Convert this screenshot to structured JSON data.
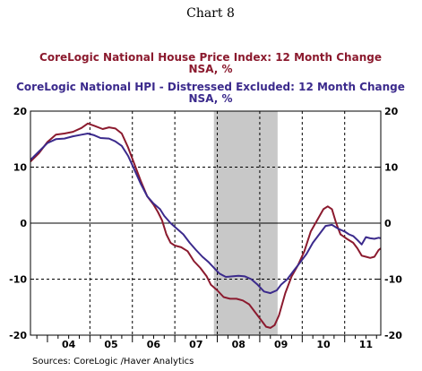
{
  "chart_data": {
    "type": "line",
    "title": "Chart 8",
    "legend": [
      {
        "line1": "CoreLogic National House Price Index: 12 Month Change",
        "line2": "NSA, %"
      },
      {
        "line1": "CoreLogic National HPI - Distressed Excluded: 12 Month Change",
        "line2": "NSA, %"
      }
    ],
    "source": "Sources:  CoreLogic /Haver Analytics",
    "ylim": [
      -20,
      20
    ],
    "yticks": [
      {
        "value": 20,
        "label": "20"
      },
      {
        "value": 10,
        "label": "10"
      },
      {
        "value": 0,
        "label": "0"
      },
      {
        "value": -10,
        "label": "-10"
      },
      {
        "value": -20,
        "label": "-20"
      }
    ],
    "xlim": [
      2003.6,
      2011.85
    ],
    "years": [
      {
        "label": "04",
        "value": 2004
      },
      {
        "label": "05",
        "value": 2005
      },
      {
        "label": "06",
        "value": 2006
      },
      {
        "label": "07",
        "value": 2007
      },
      {
        "label": "08",
        "value": 2008
      },
      {
        "label": "09",
        "value": 2009
      },
      {
        "label": "10",
        "value": 2010
      },
      {
        "label": "11",
        "value": 2011
      }
    ],
    "year_gridlines": [
      2005,
      2006,
      2007,
      2008,
      2009,
      2010,
      2011
    ],
    "recession": [
      2007.92,
      2009.42
    ],
    "colors": {
      "series1": "#8B1A2E",
      "series2": "#3B2A8C",
      "recession": "#C8C8C8"
    },
    "series": [
      {
        "name": "CoreLogic National House Price Index: 12 Month Change",
        "points": [
          [
            2003.6,
            11
          ],
          [
            2003.8,
            12.5
          ],
          [
            2004.0,
            14.5
          ],
          [
            2004.2,
            15.8
          ],
          [
            2004.4,
            16
          ],
          [
            2004.6,
            16.3
          ],
          [
            2004.8,
            17
          ],
          [
            2004.95,
            17.8
          ],
          [
            2005.1,
            17.4
          ],
          [
            2005.3,
            16.8
          ],
          [
            2005.45,
            17.1
          ],
          [
            2005.6,
            16.9
          ],
          [
            2005.75,
            16
          ],
          [
            2005.9,
            13.5
          ],
          [
            2006.05,
            10.5
          ],
          [
            2006.2,
            7.5
          ],
          [
            2006.35,
            4.8
          ],
          [
            2006.5,
            3.3
          ],
          [
            2006.6,
            2
          ],
          [
            2006.7,
            0.5
          ],
          [
            2006.8,
            -2
          ],
          [
            2006.9,
            -3.5
          ],
          [
            2007.0,
            -4
          ],
          [
            2007.15,
            -4.3
          ],
          [
            2007.3,
            -5
          ],
          [
            2007.45,
            -6.8
          ],
          [
            2007.6,
            -8
          ],
          [
            2007.75,
            -9.5
          ],
          [
            2007.85,
            -11
          ],
          [
            2008.0,
            -12
          ],
          [
            2008.15,
            -13.2
          ],
          [
            2008.3,
            -13.5
          ],
          [
            2008.45,
            -13.5
          ],
          [
            2008.6,
            -13.8
          ],
          [
            2008.75,
            -14.5
          ],
          [
            2008.9,
            -16
          ],
          [
            2009.05,
            -17.5
          ],
          [
            2009.15,
            -18.5
          ],
          [
            2009.25,
            -18.7
          ],
          [
            2009.35,
            -18.2
          ],
          [
            2009.45,
            -16.5
          ],
          [
            2009.6,
            -12.5
          ],
          [
            2009.75,
            -9.5
          ],
          [
            2009.9,
            -7.5
          ],
          [
            2010.05,
            -5
          ],
          [
            2010.2,
            -1.5
          ],
          [
            2010.35,
            0.5
          ],
          [
            2010.5,
            2.5
          ],
          [
            2010.6,
            3
          ],
          [
            2010.7,
            2.5
          ],
          [
            2010.8,
            0
          ],
          [
            2010.9,
            -2
          ],
          [
            2011.05,
            -2.8
          ],
          [
            2011.2,
            -3.5
          ],
          [
            2011.3,
            -4.5
          ],
          [
            2011.4,
            -5.8
          ],
          [
            2011.5,
            -6
          ],
          [
            2011.6,
            -6.2
          ],
          [
            2011.7,
            -6
          ],
          [
            2011.8,
            -4.8
          ],
          [
            2011.9,
            -4.2
          ],
          [
            2012.0,
            -3.8
          ],
          [
            2012.1,
            -4.2
          ]
        ]
      },
      {
        "name": "CoreLogic National HPI - Distressed Excluded: 12 Month Change",
        "points": [
          [
            2003.6,
            11.3
          ],
          [
            2003.8,
            12.8
          ],
          [
            2004.0,
            14.3
          ],
          [
            2004.2,
            15
          ],
          [
            2004.4,
            15.1
          ],
          [
            2004.6,
            15.5
          ],
          [
            2004.8,
            15.8
          ],
          [
            2004.95,
            16
          ],
          [
            2005.1,
            15.7
          ],
          [
            2005.25,
            15.2
          ],
          [
            2005.45,
            15.1
          ],
          [
            2005.6,
            14.6
          ],
          [
            2005.75,
            13.8
          ],
          [
            2005.9,
            12
          ],
          [
            2006.05,
            9.5
          ],
          [
            2006.2,
            7
          ],
          [
            2006.35,
            4.8
          ],
          [
            2006.5,
            3.5
          ],
          [
            2006.65,
            2.5
          ],
          [
            2006.75,
            1.3
          ],
          [
            2006.9,
            0
          ],
          [
            2007.05,
            -1
          ],
          [
            2007.2,
            -2
          ],
          [
            2007.35,
            -3.5
          ],
          [
            2007.5,
            -4.8
          ],
          [
            2007.65,
            -6
          ],
          [
            2007.8,
            -7
          ],
          [
            2007.9,
            -7.8
          ],
          [
            2008.05,
            -9
          ],
          [
            2008.2,
            -9.6
          ],
          [
            2008.35,
            -9.5
          ],
          [
            2008.5,
            -9.4
          ],
          [
            2008.65,
            -9.5
          ],
          [
            2008.8,
            -10
          ],
          [
            2008.95,
            -11
          ],
          [
            2009.1,
            -12.2
          ],
          [
            2009.25,
            -12.5
          ],
          [
            2009.4,
            -12
          ],
          [
            2009.5,
            -11
          ],
          [
            2009.65,
            -10
          ],
          [
            2009.8,
            -8.5
          ],
          [
            2009.95,
            -7
          ],
          [
            2010.1,
            -5.5
          ],
          [
            2010.25,
            -3.5
          ],
          [
            2010.4,
            -2
          ],
          [
            2010.55,
            -0.5
          ],
          [
            2010.7,
            -0.3
          ],
          [
            2010.85,
            -1
          ],
          [
            2011.0,
            -1.5
          ],
          [
            2011.1,
            -2
          ],
          [
            2011.2,
            -2.3
          ],
          [
            2011.3,
            -3
          ],
          [
            2011.4,
            -3.8
          ],
          [
            2011.5,
            -2.5
          ],
          [
            2011.6,
            -2.7
          ],
          [
            2011.7,
            -2.8
          ],
          [
            2011.8,
            -2.6
          ],
          [
            2011.9,
            -2.8
          ],
          [
            2012.0,
            -2.4
          ],
          [
            2012.05,
            -2
          ]
        ]
      }
    ]
  }
}
